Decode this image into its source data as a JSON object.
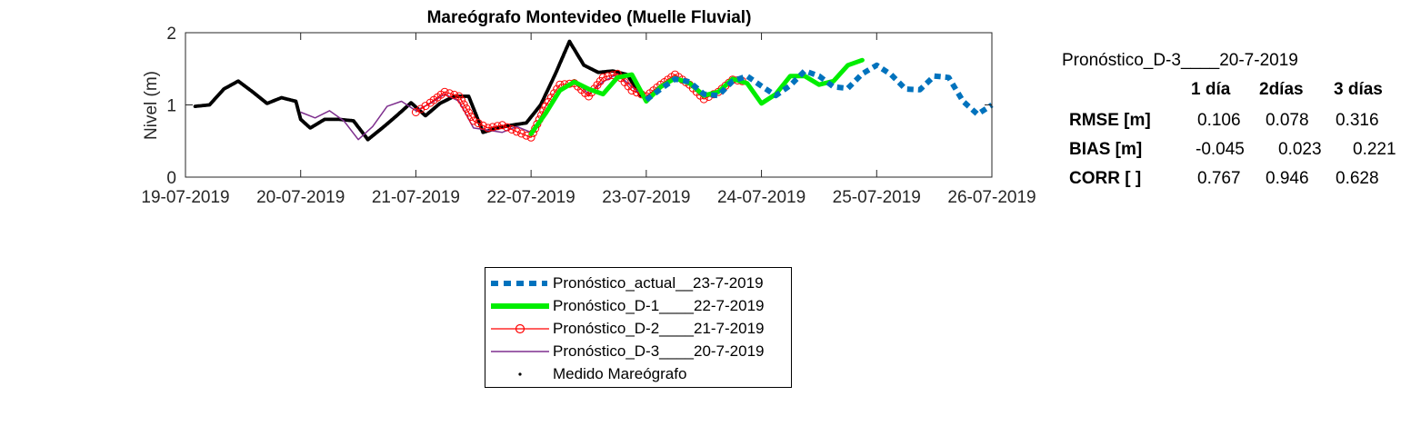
{
  "chart_data": {
    "type": "line",
    "title": "Mareógrafo Montevideo (Muelle Fluvial)",
    "xlabel": "",
    "ylabel": "Nivel (m)",
    "ylim": [
      0,
      2
    ],
    "xlim": [
      "2019-07-19",
      "2019-07-26"
    ],
    "x_ticks": [
      "19-07-2019",
      "20-07-2019",
      "21-07-2019",
      "22-07-2019",
      "23-07-2019",
      "24-07-2019",
      "25-07-2019",
      "26-07-2019"
    ],
    "y_ticks": [
      "0",
      "1",
      "2"
    ],
    "grid": false,
    "legend_position": "below",
    "series": [
      {
        "name": "Pronóstico_actual__23-7-2019",
        "color": "#0072BD",
        "style": "dotted-thick",
        "points": [
          [
            "2019-07-23 00:00",
            1.07
          ],
          [
            "2019-07-23 03:00",
            1.22
          ],
          [
            "2019-07-23 06:00",
            1.36
          ],
          [
            "2019-07-23 09:00",
            1.32
          ],
          [
            "2019-07-23 12:00",
            1.15
          ],
          [
            "2019-07-23 15:00",
            1.13
          ],
          [
            "2019-07-23 18:00",
            1.33
          ],
          [
            "2019-07-23 21:00",
            1.4
          ],
          [
            "2019-07-24 00:00",
            1.26
          ],
          [
            "2019-07-24 03:00",
            1.13
          ],
          [
            "2019-07-24 06:00",
            1.27
          ],
          [
            "2019-07-24 09:00",
            1.47
          ],
          [
            "2019-07-24 12:00",
            1.4
          ],
          [
            "2019-07-24 15:00",
            1.25
          ],
          [
            "2019-07-24 18:00",
            1.23
          ],
          [
            "2019-07-24 21:00",
            1.43
          ],
          [
            "2019-07-25 00:00",
            1.55
          ],
          [
            "2019-07-25 03:00",
            1.42
          ],
          [
            "2019-07-25 06:00",
            1.22
          ],
          [
            "2019-07-25 09:00",
            1.21
          ],
          [
            "2019-07-25 12:00",
            1.4
          ],
          [
            "2019-07-25 15:00",
            1.38
          ],
          [
            "2019-07-25 18:00",
            1.05
          ],
          [
            "2019-07-25 21:00",
            0.87
          ],
          [
            "2019-07-26 00:00",
            1.0
          ]
        ]
      },
      {
        "name": "Pronóstico_D-1____22-7-2019",
        "color": "#00EE00",
        "style": "thick",
        "points": [
          [
            "2019-07-22 00:00",
            0.6
          ],
          [
            "2019-07-22 03:00",
            0.88
          ],
          [
            "2019-07-22 06:00",
            1.2
          ],
          [
            "2019-07-22 09:00",
            1.32
          ],
          [
            "2019-07-22 12:00",
            1.22
          ],
          [
            "2019-07-22 15:00",
            1.15
          ],
          [
            "2019-07-22 18:00",
            1.38
          ],
          [
            "2019-07-22 21:00",
            1.42
          ],
          [
            "2019-07-23 00:00",
            1.05
          ],
          [
            "2019-07-23 03:00",
            1.25
          ],
          [
            "2019-07-23 06:00",
            1.37
          ],
          [
            "2019-07-23 09:00",
            1.3
          ],
          [
            "2019-07-23 12:00",
            1.13
          ],
          [
            "2019-07-23 15:00",
            1.18
          ],
          [
            "2019-07-23 18:00",
            1.36
          ],
          [
            "2019-07-23 21:00",
            1.3
          ],
          [
            "2019-07-24 00:00",
            1.02
          ],
          [
            "2019-07-24 03:00",
            1.15
          ],
          [
            "2019-07-24 06:00",
            1.4
          ],
          [
            "2019-07-24 09:00",
            1.4
          ],
          [
            "2019-07-24 12:00",
            1.28
          ],
          [
            "2019-07-24 15:00",
            1.33
          ],
          [
            "2019-07-24 18:00",
            1.55
          ],
          [
            "2019-07-24 21:00",
            1.62
          ]
        ]
      },
      {
        "name": "Pronóstico_D-2____21-7-2019",
        "color": "#FF0000",
        "style": "circle-markers",
        "points": [
          [
            "2019-07-21 00:00",
            0.9
          ],
          [
            "2019-07-21 03:00",
            1.03
          ],
          [
            "2019-07-21 06:00",
            1.18
          ],
          [
            "2019-07-21 09:00",
            1.12
          ],
          [
            "2019-07-21 12:00",
            0.78
          ],
          [
            "2019-07-21 15:00",
            0.68
          ],
          [
            "2019-07-21 18:00",
            0.72
          ],
          [
            "2019-07-21 21:00",
            0.63
          ],
          [
            "2019-07-22 00:00",
            0.55
          ],
          [
            "2019-07-22 03:00",
            0.98
          ],
          [
            "2019-07-22 06:00",
            1.28
          ],
          [
            "2019-07-22 09:00",
            1.3
          ],
          [
            "2019-07-22 12:00",
            1.12
          ],
          [
            "2019-07-22 15:00",
            1.38
          ],
          [
            "2019-07-22 18:00",
            1.43
          ],
          [
            "2019-07-22 21:00",
            1.2
          ],
          [
            "2019-07-23 00:00",
            1.12
          ],
          [
            "2019-07-23 03:00",
            1.28
          ],
          [
            "2019-07-23 06:00",
            1.42
          ],
          [
            "2019-07-23 09:00",
            1.28
          ],
          [
            "2019-07-23 12:00",
            1.08
          ],
          [
            "2019-07-23 15:00",
            1.18
          ],
          [
            "2019-07-23 18:00",
            1.35
          ],
          [
            "2019-07-23 21:00",
            1.32
          ]
        ]
      },
      {
        "name": "Pronóstico_D-3____20-7-2019",
        "color": "#7E2F8E",
        "style": "thin",
        "points": [
          [
            "2019-07-20 00:00",
            0.9
          ],
          [
            "2019-07-20 03:00",
            0.82
          ],
          [
            "2019-07-20 06:00",
            0.92
          ],
          [
            "2019-07-20 09:00",
            0.78
          ],
          [
            "2019-07-20 12:00",
            0.52
          ],
          [
            "2019-07-20 15:00",
            0.7
          ],
          [
            "2019-07-20 18:00",
            0.98
          ],
          [
            "2019-07-20 21:00",
            1.05
          ],
          [
            "2019-07-21 00:00",
            0.92
          ],
          [
            "2019-07-21 03:00",
            1.02
          ],
          [
            "2019-07-21 06:00",
            1.15
          ],
          [
            "2019-07-21 09:00",
            1.05
          ],
          [
            "2019-07-21 12:00",
            0.68
          ],
          [
            "2019-07-21 15:00",
            0.65
          ],
          [
            "2019-07-21 18:00",
            0.62
          ],
          [
            "2019-07-21 21:00",
            0.7
          ],
          [
            "2019-07-22 00:00",
            0.62
          ],
          [
            "2019-07-22 03:00",
            0.92
          ],
          [
            "2019-07-22 06:00",
            1.2
          ],
          [
            "2019-07-22 09:00",
            1.35
          ],
          [
            "2019-07-22 12:00",
            1.15
          ],
          [
            "2019-07-22 15:00",
            1.32
          ],
          [
            "2019-07-22 18:00",
            1.43
          ],
          [
            "2019-07-22 21:00",
            1.25
          ],
          [
            "2019-07-23 00:00",
            1.1
          ]
        ]
      },
      {
        "name": "Medido Mareógrafo",
        "color": "#000000",
        "style": "dots",
        "points": [
          [
            "2019-07-19 02:00",
            0.98
          ],
          [
            "2019-07-19 05:00",
            1.0
          ],
          [
            "2019-07-19 08:00",
            1.22
          ],
          [
            "2019-07-19 11:00",
            1.33
          ],
          [
            "2019-07-19 14:00",
            1.18
          ],
          [
            "2019-07-19 17:00",
            1.02
          ],
          [
            "2019-07-19 20:00",
            1.1
          ],
          [
            "2019-07-19 23:00",
            1.05
          ],
          [
            "2019-07-20 00:00",
            0.8
          ],
          [
            "2019-07-20 02:00",
            0.68
          ],
          [
            "2019-07-20 05:00",
            0.8
          ],
          [
            "2019-07-20 08:00",
            0.8
          ],
          [
            "2019-07-20 11:00",
            0.78
          ],
          [
            "2019-07-20 14:00",
            0.52
          ],
          [
            "2019-07-20 17:00",
            0.68
          ],
          [
            "2019-07-20 20:00",
            0.85
          ],
          [
            "2019-07-20 23:00",
            1.03
          ],
          [
            "2019-07-21 02:00",
            0.85
          ],
          [
            "2019-07-21 05:00",
            1.02
          ],
          [
            "2019-07-21 08:00",
            1.12
          ],
          [
            "2019-07-21 11:00",
            1.12
          ],
          [
            "2019-07-21 14:00",
            0.62
          ],
          [
            "2019-07-21 17:00",
            0.68
          ],
          [
            "2019-07-21 20:00",
            0.72
          ],
          [
            "2019-07-21 23:00",
            0.75
          ],
          [
            "2019-07-22 02:00",
            1.0
          ],
          [
            "2019-07-22 05:00",
            1.42
          ],
          [
            "2019-07-22 08:00",
            1.88
          ],
          [
            "2019-07-22 11:00",
            1.55
          ],
          [
            "2019-07-22 14:00",
            1.45
          ],
          [
            "2019-07-22 17:00",
            1.47
          ],
          [
            "2019-07-22 20:00",
            1.42
          ],
          [
            "2019-07-22 23:00",
            1.12
          ]
        ]
      }
    ]
  },
  "legend": {
    "items": [
      {
        "label": "Pronóstico_actual__23-7-2019",
        "color": "#0072BD",
        "style": "dotted-thick"
      },
      {
        "label": "Pronóstico_D-1____22-7-2019",
        "color": "#00EE00",
        "style": "thick"
      },
      {
        "label": "Pronóstico_D-2____21-7-2019",
        "color": "#FF0000",
        "style": "circle-markers"
      },
      {
        "label": "Pronóstico_D-3____20-7-2019",
        "color": "#7E2F8E",
        "style": "thin"
      },
      {
        "label": "Medido Mareógrafo",
        "color": "#000000",
        "style": "dots"
      }
    ]
  },
  "stats": {
    "title": "Pronóstico_D-3____20-7-2019",
    "columns": [
      "1 día",
      "2días",
      "3 días"
    ],
    "rows": [
      {
        "label": "RMSE [m]",
        "values": [
          "0.106",
          "0.078",
          "0.316"
        ]
      },
      {
        "label": "BIAS [m]",
        "values": [
          "-0.045",
          "0.023",
          "0.221"
        ]
      },
      {
        "label": "CORR [  ]",
        "values": [
          "0.767",
          "0.946",
          "0.628"
        ]
      }
    ]
  }
}
